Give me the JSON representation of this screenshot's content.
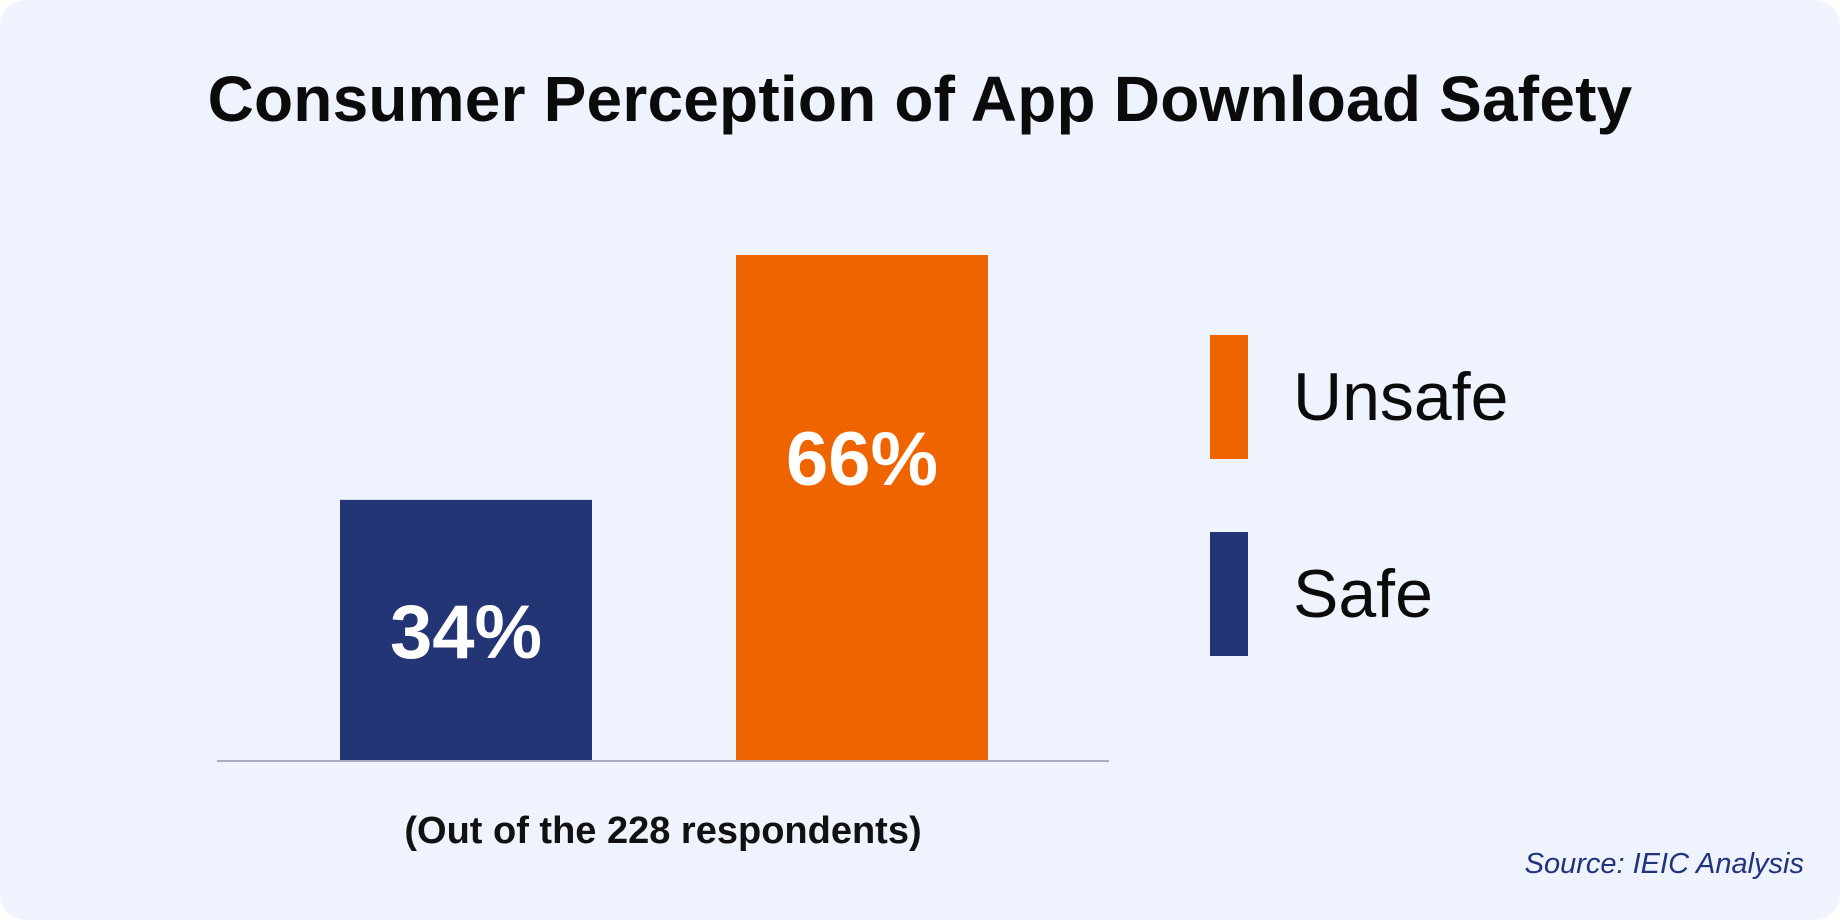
{
  "chart_data": {
    "type": "bar",
    "title": "Consumer Perception of App Download Safety",
    "categories": [
      "Safe",
      "Unsafe"
    ],
    "values": [
      34,
      66
    ],
    "data_labels": [
      "34%",
      "66%"
    ],
    "colors": [
      "#243575",
      "#f06400"
    ],
    "xlabel": "(Out of the 228 respondents)",
    "ylabel": "",
    "ylim": [
      0,
      66
    ],
    "grid": false,
    "legend": {
      "position": "right",
      "entries": [
        {
          "label": "Unsafe",
          "color": "#f06400"
        },
        {
          "label": "Safe",
          "color": "#243575"
        }
      ]
    },
    "annotations": [
      "Source: IEIC Analysis"
    ]
  },
  "footnote": "(Out of the 228 respondents)",
  "source": "Source: IEIC Analysis",
  "colors": {
    "background": "#eff3fd",
    "axis": "#a9aec0",
    "source_text": "#22337e"
  }
}
